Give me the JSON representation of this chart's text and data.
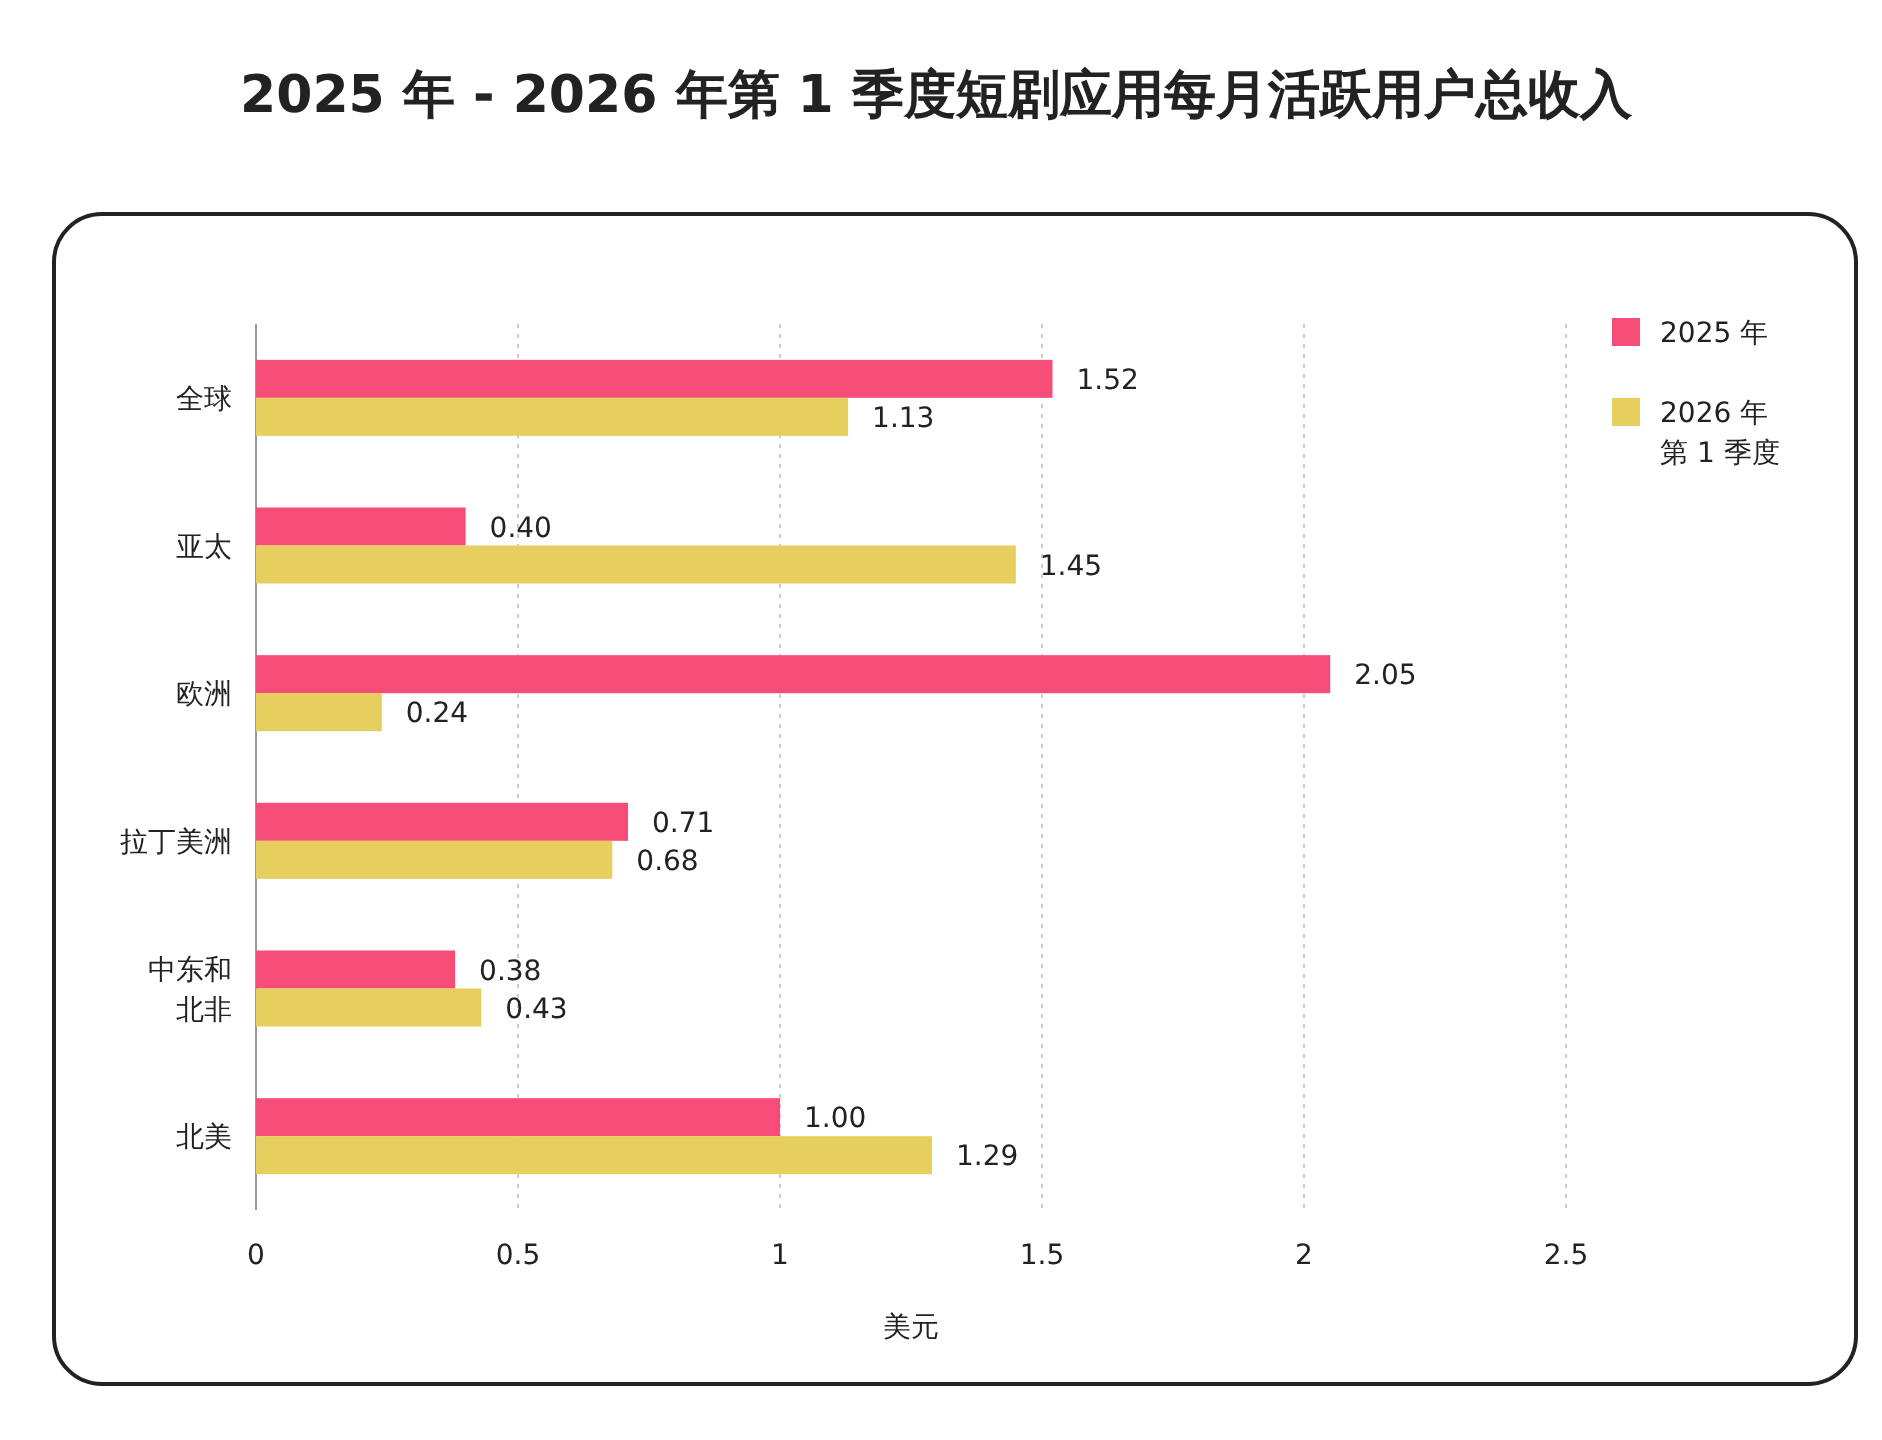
{
  "chart_data": {
    "type": "bar",
    "orientation": "horizontal",
    "title": "2025 年 - 2026 年第 1 季度短剧应用每月活跃用户总收入",
    "xlabel": "美元",
    "categories": [
      "全球",
      "亚太",
      "欧洲",
      "拉丁美洲",
      "中东和北非",
      "北美"
    ],
    "series": [
      {
        "name": "2025 年",
        "color": "#f64c78",
        "values": [
          1.52,
          0.4,
          2.05,
          0.71,
          0.38,
          1.0
        ],
        "value_labels": [
          "1.52",
          "0.40",
          "2.05",
          "0.71",
          "0.38",
          "1.00"
        ]
      },
      {
        "name": "2026 年第 1 季度",
        "color": "#e6cf5e",
        "values": [
          1.13,
          1.45,
          0.24,
          0.68,
          0.43,
          1.29
        ],
        "value_labels": [
          "1.13",
          "1.45",
          "0.24",
          "0.68",
          "0.43",
          "1.29"
        ]
      }
    ],
    "xlim": [
      0,
      2.5
    ],
    "xticks": [
      0,
      0.5,
      1,
      1.5,
      2,
      2.5
    ],
    "grid": "x",
    "legend": "top right"
  }
}
